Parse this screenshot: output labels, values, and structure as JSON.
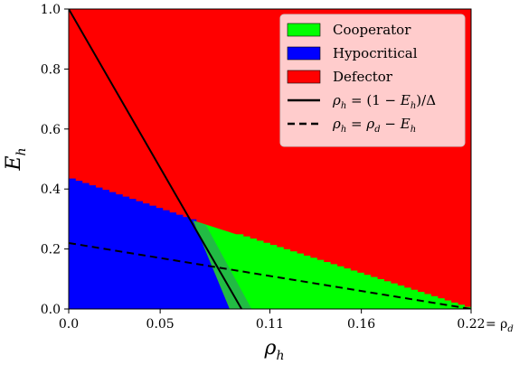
{
  "chart_data": {
    "type": "heatmap",
    "xlabel": "ρ",
    "xlabel_sub": "h",
    "ylabel": "E",
    "ylabel_sub": "h",
    "xlim": [
      0.0,
      0.22
    ],
    "ylim": [
      0.0,
      1.0
    ],
    "x_ticks": [
      0.0,
      0.05,
      0.11,
      0.16,
      0.22
    ],
    "x_tick_labels": [
      "0.0",
      "0.05",
      "0.11",
      "0.16",
      "0.22"
    ],
    "x_end_annotation": "= ρ",
    "x_end_annotation_sub": "d",
    "y_ticks": [
      0.0,
      0.2,
      0.4,
      0.6,
      0.8,
      1.0
    ],
    "y_tick_labels": [
      "0.0",
      "0.2",
      "0.4",
      "0.6",
      "0.8",
      "1.0"
    ],
    "grid": false,
    "legend_position": "top-right",
    "regions": [
      {
        "name": "Cooperator",
        "color": "#00ff00",
        "polygon": [
          [
            0.068,
            0.295
          ],
          [
            0.22,
            0.0
          ],
          [
            0.088,
            0.0
          ]
        ]
      },
      {
        "name": "Hypocritical",
        "color": "#0000ff",
        "polygon": [
          [
            0.0,
            0.435
          ],
          [
            0.068,
            0.295
          ],
          [
            0.088,
            0.0
          ],
          [
            0.0,
            0.0
          ]
        ]
      },
      {
        "name": "Defector",
        "color": "#ff0000",
        "polygon": "background"
      }
    ],
    "overlap_band": {
      "color": "#22bb44",
      "polygon": [
        [
          0.068,
          0.295
        ],
        [
          0.075,
          0.28
        ],
        [
          0.1,
          0.0
        ],
        [
          0.088,
          0.0
        ]
      ]
    },
    "lines": [
      {
        "label_tex": "ρ_h = (1 − E_h)/Δ",
        "style": "solid",
        "color": "#000000",
        "points": [
          [
            0.0,
            1.0
          ],
          [
            0.0945,
            0.0
          ]
        ]
      },
      {
        "label_tex": "ρ_h = ρ_d − E_h",
        "style": "dashed",
        "color": "#000000",
        "points": [
          [
            0.0,
            0.22
          ],
          [
            0.22,
            0.0
          ]
        ]
      }
    ],
    "legend": [
      {
        "label": "Cooperator",
        "kind": "patch",
        "color": "#00ff00"
      },
      {
        "label": "Hypocritical",
        "kind": "patch",
        "color": "#0000ff"
      },
      {
        "label": "Defector",
        "kind": "patch",
        "color": "#ff0000"
      },
      {
        "label": "ρh = (1 − Eh)/Δ",
        "kind": "line-solid",
        "color": "#000000"
      },
      {
        "label": "ρh = ρd − Eh",
        "kind": "line-dashed",
        "color": "#000000"
      }
    ]
  }
}
